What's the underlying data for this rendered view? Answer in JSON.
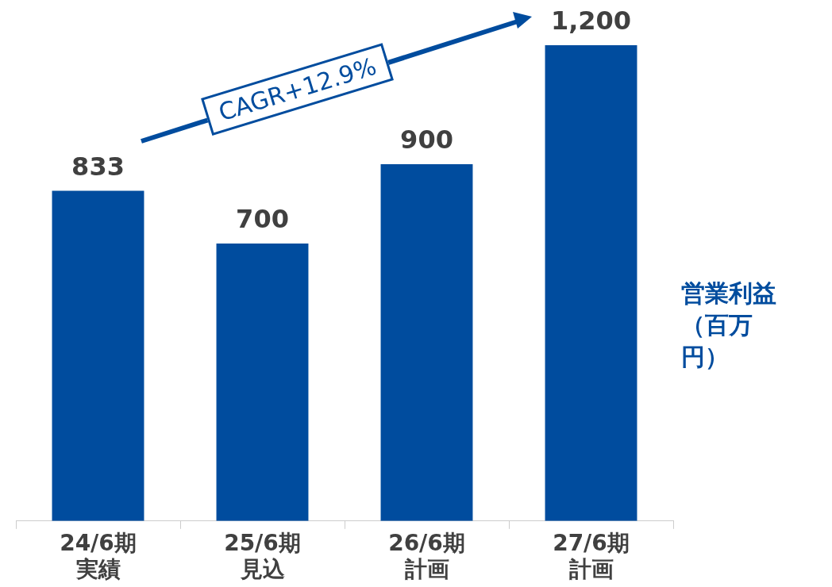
{
  "chart_data": {
    "type": "bar",
    "categories": [
      "24/6期実績",
      "25/6期見込",
      "26/6期計画",
      "27/6期計画"
    ],
    "values": [
      833,
      700,
      900,
      1200
    ],
    "color": "#004c9e",
    "ylim": [
      0,
      1200
    ],
    "value_labels": [
      "833",
      "700",
      "900",
      "1,200"
    ],
    "ylabel": "営業利益（百万円）",
    "annotations": [
      "CAGR+12.9%"
    ],
    "grid": false,
    "legend": false
  }
}
